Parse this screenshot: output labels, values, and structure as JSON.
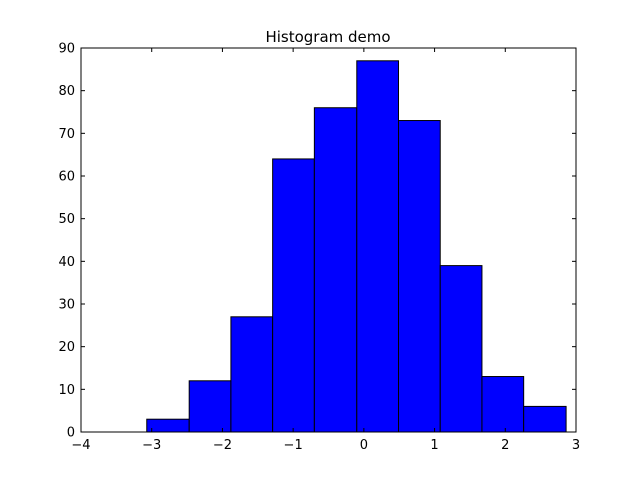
{
  "chart_data": {
    "type": "bar",
    "title": "Histogram demo",
    "xlabel": "",
    "ylabel": "",
    "xlim": [
      -4,
      3
    ],
    "ylim": [
      0,
      90
    ],
    "x_ticks": [
      -4,
      -3,
      -2,
      -1,
      0,
      1,
      2,
      3
    ],
    "y_ticks": [
      0,
      10,
      20,
      30,
      40,
      50,
      60,
      70,
      80,
      90
    ],
    "x_tick_labels": [
      "−4",
      "−3",
      "−2",
      "−1",
      "0",
      "1",
      "2",
      "3"
    ],
    "y_tick_labels": [
      "0",
      "10",
      "20",
      "30",
      "40",
      "50",
      "60",
      "70",
      "80",
      "90"
    ],
    "bin_edges": [
      -3.07,
      -2.47,
      -1.88,
      -1.29,
      -0.7,
      -0.1,
      0.49,
      1.08,
      1.67,
      2.26,
      2.86
    ],
    "values": [
      3,
      12,
      27,
      64,
      76,
      87,
      73,
      39,
      13,
      6
    ],
    "grid": false,
    "bar_color": "#0000ff",
    "edge_color": "#000000"
  }
}
